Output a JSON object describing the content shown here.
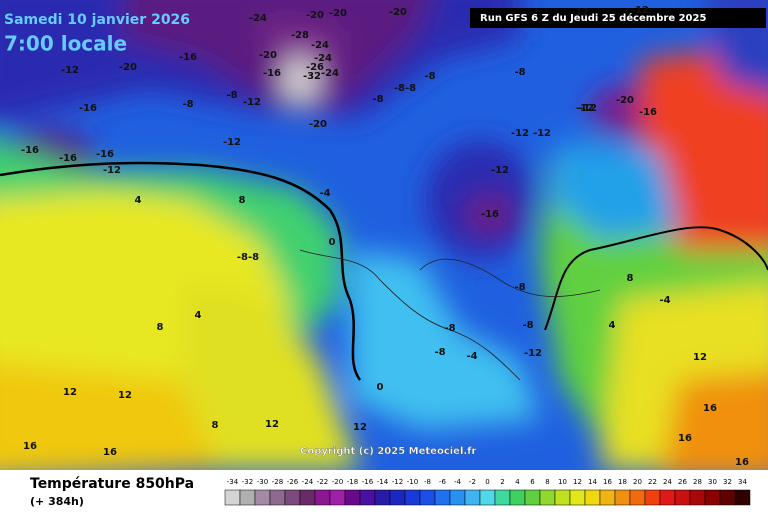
{
  "header": {
    "date": "Samedi 10 janvier 2026",
    "time": "7:00 locale",
    "run": "Run GFS 6 Z du Jeudi 25 décembre 2025"
  },
  "copyright": "Copyright (c) 2025 Meteociel.fr",
  "footer": {
    "title": "Température 850hPa",
    "lead": "(+ 384h)"
  },
  "map": {
    "labels": [
      "-24",
      "-20",
      "-20",
      "-20",
      "-28",
      "-24",
      "-24",
      "-26",
      "-32",
      "-24",
      "-20",
      "-16",
      "-16",
      "-20",
      "-12",
      "-16",
      "-8",
      "-12",
      "-8",
      "-20",
      "-12",
      "-16",
      "-16",
      "-16",
      "-12",
      "-8",
      "-8-8",
      "-8",
      "-8",
      "-12",
      "-20",
      "-16",
      "-12",
      "-12",
      "-12",
      "-12",
      "-16",
      "4",
      "8",
      "-8-8",
      "0",
      "-4",
      "8",
      "4",
      "12",
      "12",
      "8",
      "12",
      "12",
      "16",
      "16",
      "8",
      "-4",
      "4",
      "12",
      "16",
      "16",
      "16",
      "-8",
      "-8",
      "-8",
      "-12",
      "-8",
      "0",
      "-4",
      "-12",
      "-12"
    ]
  },
  "legend": {
    "values": [
      -34,
      -32,
      -30,
      -28,
      -26,
      -24,
      -22,
      -20,
      -18,
      -16,
      -14,
      -12,
      -10,
      -8,
      -6,
      -4,
      -2,
      0,
      2,
      4,
      6,
      8,
      10,
      12,
      14,
      16,
      18,
      20,
      22,
      24,
      26,
      28,
      30,
      32,
      34
    ],
    "colors": [
      "#d4d4d4",
      "#b0b0b0",
      "#a48aa4",
      "#8e6a8e",
      "#7c4a7c",
      "#6a2a6a",
      "#8a1890",
      "#a020a8",
      "#6a0a8a",
      "#4a10a0",
      "#2a1aa8",
      "#1a28c0",
      "#1a3ad8",
      "#1a50e8",
      "#2070f0",
      "#2a90f0",
      "#40b4f0",
      "#50d8e8",
      "#40d8a0",
      "#40d060",
      "#60d040",
      "#90d830",
      "#c0e020",
      "#e0e818",
      "#f0d810",
      "#f0b410",
      "#f09010",
      "#f06a10",
      "#f04010",
      "#e01818",
      "#c81010",
      "#a80808",
      "#880000",
      "#600000",
      "#300000"
    ]
  }
}
